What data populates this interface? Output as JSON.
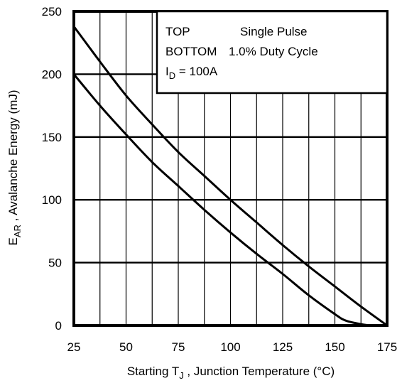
{
  "chart_data": {
    "type": "line",
    "xlabel": {
      "main": "Starting T",
      "sub": "J",
      "rest": " , Junction Temperature (°C)"
    },
    "ylabel": {
      "main": "E",
      "sub": "AR",
      "rest": " , Avalanche Energy (mJ)"
    },
    "xlim": [
      25,
      175
    ],
    "ylim": [
      0,
      250
    ],
    "x_ticks": [
      25,
      50,
      75,
      100,
      125,
      150,
      175
    ],
    "y_ticks": [
      0,
      50,
      100,
      150,
      200,
      250
    ],
    "x_minor_step": 12.5,
    "y_grid_step": 50,
    "grid": true,
    "legend_box": {
      "position": "top-right",
      "lines": [
        {
          "left": "TOP",
          "right": "Single Pulse"
        },
        {
          "left": "BOTTOM",
          "right": "1.0% Duty Cycle"
        },
        {
          "left": "I",
          "sub": "D",
          "right": " = 100A"
        }
      ]
    },
    "series": [
      {
        "x": [
          25,
          37.5,
          50,
          62.5,
          75,
          87.5,
          100,
          112.5,
          125,
          137.5,
          150,
          162.5,
          175
        ],
        "y": [
          238,
          210,
          183,
          160,
          138,
          119,
          100,
          82,
          64,
          47,
          31,
          15,
          0
        ]
      },
      {
        "x": [
          25,
          37.5,
          50,
          62.5,
          75,
          87.5,
          100,
          112.5,
          125,
          137.5,
          150,
          155,
          162.5,
          168,
          175
        ],
        "y": [
          200,
          175,
          152,
          130,
          111,
          92,
          74,
          57,
          41,
          24,
          9,
          4,
          1,
          0,
          0
        ]
      }
    ],
    "colors": {
      "line": "#000000",
      "grid": "#000000",
      "background": "#ffffff"
    }
  }
}
